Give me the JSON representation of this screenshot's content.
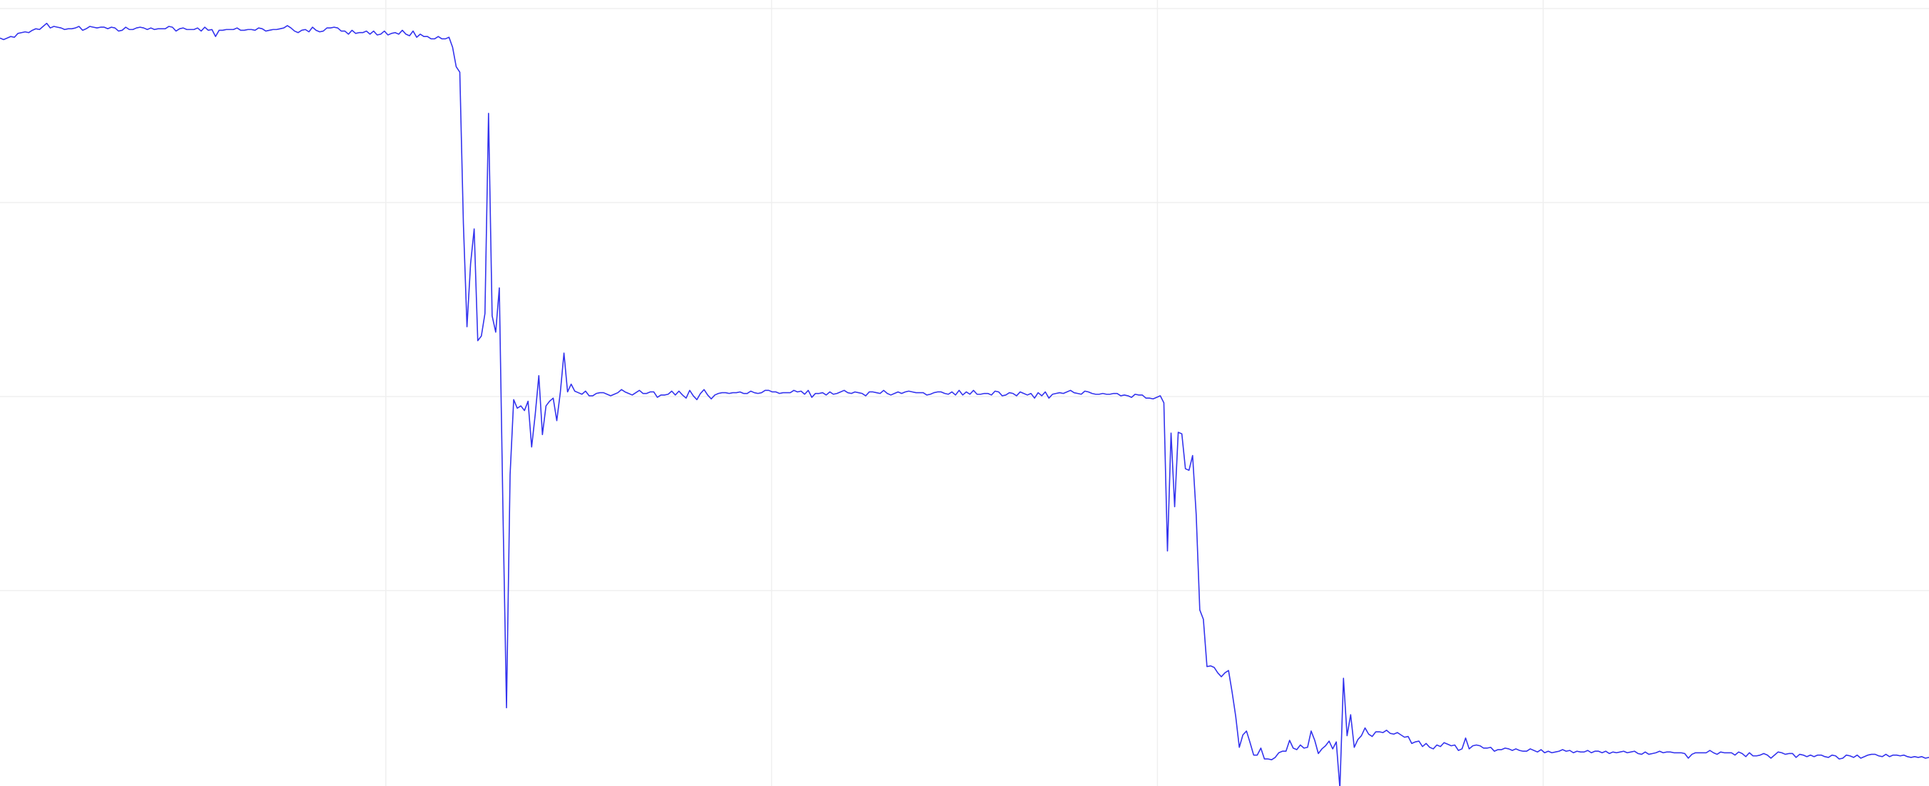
{
  "chart_data": {
    "type": "line",
    "title": "",
    "xlabel": "",
    "ylabel": "",
    "xlim": [
      0,
      490
    ],
    "ylim": [
      0,
      100
    ],
    "grid": true,
    "legend": "none",
    "colors": {
      "line": "#3333ee",
      "grid": "#efefef",
      "background": "#ffffff"
    },
    "series": [
      {
        "values": [
          96.2,
          96,
          96.2,
          96.4,
          96.3,
          96.8,
          96.9,
          97,
          96.9,
          97.2,
          97.4,
          97.3,
          97.7,
          98.1,
          97.5,
          97.7,
          97.6,
          97.5,
          97.3,
          97.4,
          97.4,
          97.5,
          97.7,
          97.2,
          97.4,
          97.7,
          97.6,
          97.5,
          97.6,
          97.6,
          97.4,
          97.6,
          97.5,
          97.1,
          97.2,
          97.6,
          97.3,
          97.3,
          97.5,
          97.6,
          97.5,
          97.3,
          97.5,
          97.3,
          97.4,
          97.4,
          97.4,
          97.7,
          97.6,
          97.1,
          97.4,
          97.5,
          97.3,
          97.3,
          97.3,
          97.5,
          97.1,
          97.6,
          97.2,
          97.3,
          96.4,
          97.2,
          97.2,
          97.3,
          97.3,
          97.3,
          97.5,
          97.2,
          97.2,
          97.3,
          97.3,
          97.2,
          97.5,
          97.4,
          97.1,
          97.2,
          97.3,
          97.3,
          97.4,
          97.5,
          97.8,
          97.5,
          97.1,
          96.9,
          97.2,
          97.3,
          97,
          97.6,
          97.2,
          97,
          97.1,
          97.5,
          97.5,
          97.6,
          97.5,
          97.1,
          97.1,
          96.7,
          97.2,
          96.8,
          96.9,
          96.9,
          97.1,
          96.7,
          97.1,
          96.6,
          96.7,
          97.1,
          96.6,
          96.8,
          96.9,
          96.7,
          97.2,
          96.7,
          96.5,
          97.1,
          96.3,
          96.7,
          96.4,
          96.4,
          96.1,
          96.1,
          96.4,
          96.1,
          96.1,
          96.3,
          95,
          92.5,
          91.8,
          72.3,
          59,
          67.1,
          71.6,
          57.2,
          57.8,
          60.7,
          86.5,
          60.4,
          58.3,
          64,
          35.7,
          9.9,
          39.9,
          49.6,
          48.5,
          48.8,
          48.2,
          49.4,
          43.5,
          47.7,
          52.7,
          45.1,
          48.8,
          49.4,
          49.8,
          46.9,
          50.6,
          55.6,
          50.6,
          51.6,
          50.7,
          50.5,
          50.3,
          50.7,
          50.1,
          50.1,
          50.4,
          50.5,
          50.5,
          50.3,
          50.1,
          50.3,
          50.5,
          50.9,
          50.6,
          50.4,
          50.2,
          50.5,
          50.8,
          50.4,
          50.4,
          50.6,
          50.6,
          49.9,
          50.2,
          50.2,
          50.3,
          50.7,
          50.2,
          50.7,
          50.2,
          49.8,
          50.8,
          50.1,
          49.6,
          50.4,
          50.9,
          50.2,
          49.7,
          50.2,
          50.4,
          50.5,
          50.5,
          50.4,
          50.5,
          50.5,
          50.6,
          50.4,
          50.4,
          50.7,
          50.5,
          50.4,
          50.5,
          50.8,
          50.8,
          50.6,
          50.6,
          50.4,
          50.5,
          50.5,
          50.5,
          50.8,
          50.6,
          50.7,
          50.3,
          50.8,
          49.9,
          50.4,
          50.4,
          50.5,
          50.2,
          50.6,
          50.3,
          50.4,
          50.6,
          50.8,
          50.5,
          50.4,
          50.6,
          50.5,
          50.4,
          50.1,
          50.6,
          50.6,
          50.5,
          50.4,
          50.8,
          50.4,
          50.2,
          50.4,
          50.6,
          50.4,
          50.6,
          50.7,
          50.6,
          50.5,
          50.5,
          50.5,
          50.2,
          50.3,
          50.5,
          50.6,
          50.6,
          50.4,
          50.3,
          50.6,
          50.2,
          50.8,
          50.2,
          50.6,
          50.3,
          50.8,
          50.3,
          50.3,
          50.4,
          50.4,
          50.2,
          50.7,
          50.6,
          50.1,
          50.2,
          50.5,
          50.4,
          50.1,
          50.6,
          50.4,
          50.2,
          50.4,
          49.8,
          50.5,
          50.1,
          50.6,
          49.8,
          50.3,
          50.4,
          50.5,
          50.4,
          50.6,
          50.8,
          50.5,
          50.4,
          50.3,
          50.7,
          50.6,
          50.4,
          50.3,
          50.3,
          50.4,
          50.3,
          50.3,
          50.4,
          50.4,
          50.1,
          50.2,
          50.1,
          49.9,
          50.3,
          50.2,
          50.2,
          49.8,
          49.8,
          49.7,
          49.9,
          50.1,
          49.2,
          30.1,
          45.3,
          35.8,
          45.4,
          45.2,
          40.7,
          40.5,
          42.4,
          34.8,
          22.5,
          21.3,
          15.2,
          15.3,
          15.1,
          14.4,
          13.9,
          14.4,
          14.7,
          11.9,
          8.8,
          4.8,
          6.4,
          6.9,
          5.4,
          3.8,
          3.8,
          4.7,
          3.3,
          3.3,
          3.2,
          3.5,
          4.1,
          4.3,
          4.3,
          5.7,
          4.7,
          4.5,
          5.1,
          4.7,
          4.8,
          6.9,
          5.7,
          4,
          4.6,
          5,
          5.6,
          4.6,
          5.5,
          -0.5,
          13.7,
          6.3,
          9,
          4.8,
          5.8,
          6.3,
          7.3,
          6.5,
          6.2,
          6.8,
          6.8,
          6.7,
          7,
          6.6,
          6.5,
          6.7,
          6.4,
          6.1,
          6.2,
          5.3,
          5.5,
          5.6,
          4.9,
          5.3,
          4.8,
          4.6,
          5.1,
          4.9,
          5.4,
          5.2,
          5,
          5.1,
          4.4,
          4.6,
          6,
          4.6,
          5,
          5.1,
          5,
          4.7,
          4.7,
          4.8,
          4.3,
          4.5,
          4.5,
          4.7,
          4.6,
          4.4,
          4.6,
          4.4,
          4.3,
          4.3,
          4.6,
          4.4,
          4.2,
          4.5,
          4.1,
          4.3,
          4.1,
          4.2,
          4.3,
          4.5,
          4.3,
          4.4,
          4.1,
          4.3,
          4.2,
          4.2,
          4.4,
          4.1,
          4.3,
          4.3,
          4.1,
          4.3,
          4,
          4.2,
          4.1,
          4.2,
          4.3,
          4.1,
          4.2,
          4.3,
          4,
          3.9,
          4.2,
          3.9,
          4,
          4.1,
          4.3,
          4.1,
          4.2,
          4.2,
          4.1,
          4.1,
          4.1,
          4,
          3.4,
          3.9,
          4.1,
          4.1,
          4.1,
          4.1,
          4.4,
          4.1,
          3.9,
          4.2,
          4.1,
          4.1,
          4.1,
          3.8,
          4.2,
          4,
          3.6,
          4.1,
          3.7,
          3.7,
          3.8,
          4,
          3.8,
          3.4,
          3.8,
          4.2,
          4.1,
          3.9,
          4,
          4,
          3.5,
          3.9,
          3.8,
          3.6,
          3.8,
          3.6,
          3.8,
          3.8,
          3.6,
          3.5,
          3.8,
          3.7,
          3.3,
          3.4,
          3.8,
          3.7,
          3.5,
          3.8,
          3.4,
          3.6,
          3.8,
          3.9,
          3.9,
          3.7,
          3.6,
          3.9,
          3.6,
          3.8,
          3.8,
          3.7,
          3.8,
          3.6,
          3.5,
          3.6,
          3.5,
          3.6,
          3.4,
          3.5
        ]
      }
    ]
  }
}
